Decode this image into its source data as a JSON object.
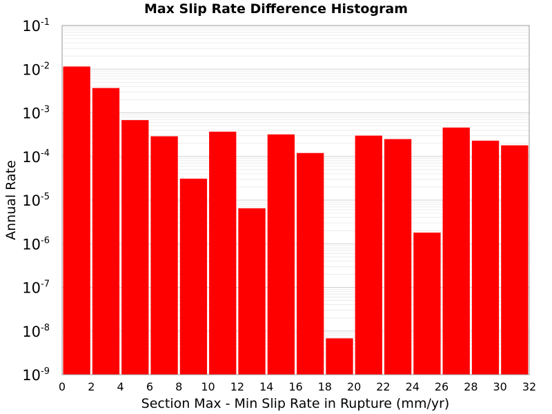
{
  "chart_data": {
    "type": "bar",
    "title": "Max Slip Rate Difference Histogram",
    "xlabel": "Section Max - Min Slip Rate in Rupture (mm/yr)",
    "ylabel": "Annual Rate",
    "yscale": "log",
    "xlim": [
      0,
      32
    ],
    "ylim": [
      1e-09,
      0.1
    ],
    "grid": true,
    "x_ticks": [
      "0",
      "2",
      "4",
      "6",
      "8",
      "10",
      "12",
      "14",
      "16",
      "18",
      "20",
      "22",
      "24",
      "26",
      "28",
      "30",
      "32"
    ],
    "y_ticks": [
      {
        "base": "10",
        "exp": "-1"
      },
      {
        "base": "10",
        "exp": "-2"
      },
      {
        "base": "10",
        "exp": "-3"
      },
      {
        "base": "10",
        "exp": "-4"
      },
      {
        "base": "10",
        "exp": "-5"
      },
      {
        "base": "10",
        "exp": "-6"
      },
      {
        "base": "10",
        "exp": "-7"
      },
      {
        "base": "10",
        "exp": "-8"
      },
      {
        "base": "10",
        "exp": "-9"
      }
    ],
    "bin_width": 2,
    "bins": [
      {
        "x": 1,
        "value": 0.0115
      },
      {
        "x": 3,
        "value": 0.0037
      },
      {
        "x": 5,
        "value": 0.00068
      },
      {
        "x": 7,
        "value": 0.00029
      },
      {
        "x": 9,
        "value": 3.1e-05
      },
      {
        "x": 11,
        "value": 0.00037
      },
      {
        "x": 13,
        "value": 6.5e-06
      },
      {
        "x": 15,
        "value": 0.00032
      },
      {
        "x": 17,
        "value": 0.00012
      },
      {
        "x": 19,
        "value": 6.8e-09
      },
      {
        "x": 21,
        "value": 0.0003
      },
      {
        "x": 23,
        "value": 0.00025
      },
      {
        "x": 25,
        "value": 1.8e-06
      },
      {
        "x": 27,
        "value": 0.00046
      },
      {
        "x": 29,
        "value": 0.00023
      },
      {
        "x": 31,
        "value": 0.00018
      }
    ],
    "bar_color": "#ff0000"
  }
}
